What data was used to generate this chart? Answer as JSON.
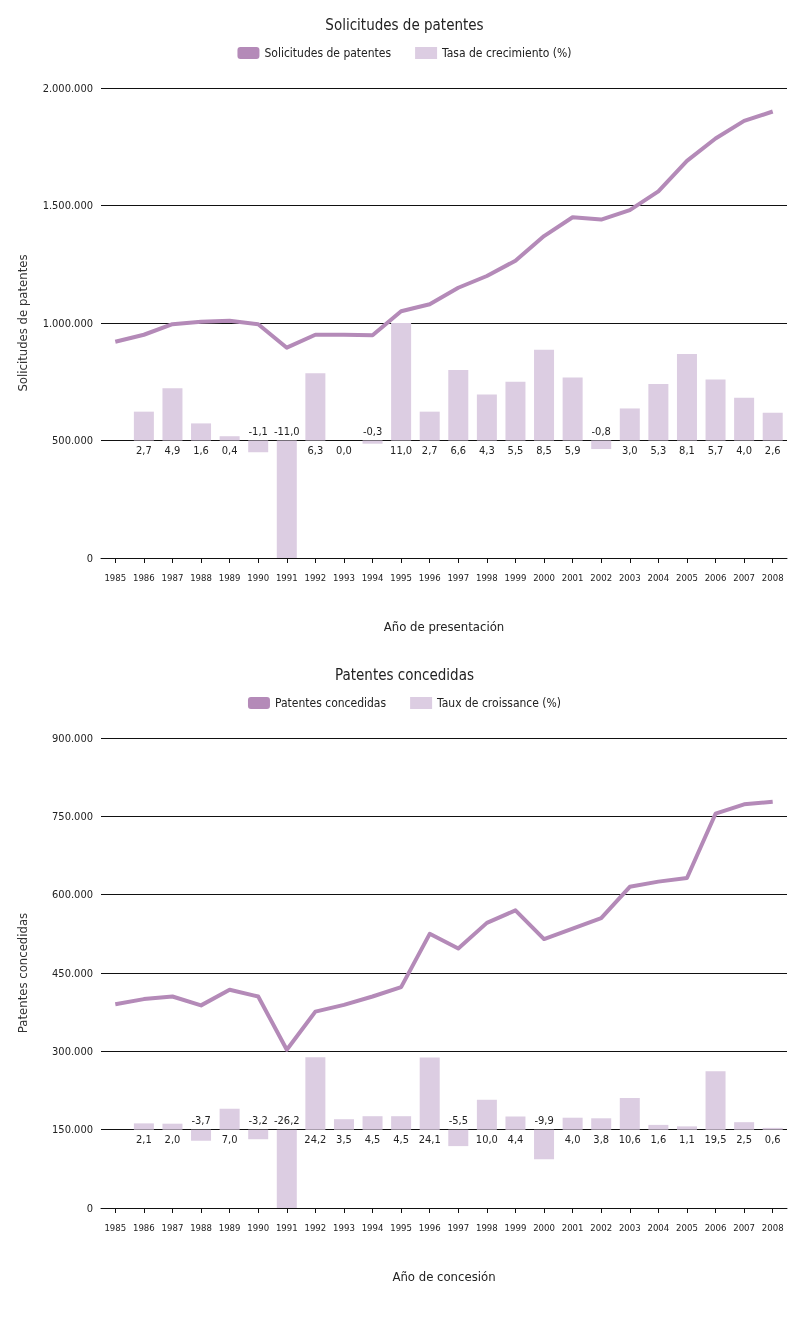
{
  "chart_data": [
    {
      "type": "bar",
      "title": "Solicitudes de patentes",
      "xlabel": "Año de presentación",
      "ylabel": "Solicitudes de patentes",
      "legend": "top",
      "grid": "y",
      "marker": "none",
      "categories": [
        "1985",
        "1986",
        "1987",
        "1988",
        "1989",
        "1990",
        "1991",
        "1992",
        "1993",
        "1994",
        "1995",
        "1996",
        "1997",
        "1998",
        "1999",
        "2000",
        "2001",
        "2002",
        "2003",
        "2004",
        "2005",
        "2006",
        "2007",
        "2008"
      ],
      "ylim": [
        0,
        2000000
      ],
      "yticks": [
        {
          "value": 0,
          "label": "0"
        },
        {
          "value": 500000,
          "label": "500.000"
        },
        {
          "value": 1000000,
          "label": "1.000.000"
        },
        {
          "value": 1500000,
          "label": "1.500.000"
        },
        {
          "value": 2000000,
          "label": "2.000.000"
        }
      ],
      "y2lim": [
        -11,
        33
      ],
      "series": [
        {
          "name": "Solicitudes de patentes",
          "type": "line",
          "color": "#b48ab8",
          "values": [
            920000,
            950000,
            995000,
            1005000,
            1010000,
            995000,
            895000,
            950000,
            950000,
            948000,
            1050000,
            1080000,
            1150000,
            1200000,
            1265000,
            1370000,
            1450000,
            1440000,
            1480000,
            1560000,
            1690000,
            1785000,
            1860000,
            1900000
          ]
        },
        {
          "name": "Tasa de crecimiento (%)",
          "axis": "y2",
          "color": "#dccde2",
          "values": [
            null,
            2.7,
            4.9,
            1.6,
            0.4,
            -1.1,
            -11.0,
            6.3,
            0.0,
            -0.3,
            11.0,
            2.7,
            6.6,
            4.3,
            5.5,
            8.5,
            5.9,
            -0.8,
            3.0,
            5.3,
            8.1,
            5.7,
            4.0,
            2.6
          ],
          "value_labels": [
            null,
            "2,7",
            "4,9",
            "1,6",
            "0,4",
            "-1,1",
            "-11,0",
            "6,3",
            "0,0",
            "-0,3",
            "11,0",
            "2,7",
            "6,6",
            "4,3",
            "5,5",
            "8,5",
            "5,9",
            "-0,8",
            "3,0",
            "5,3",
            "8,1",
            "5,7",
            "4,0",
            "2,6"
          ]
        }
      ]
    },
    {
      "type": "bar",
      "title": "Patentes concedidas",
      "xlabel": "Año de concesión",
      "ylabel": "Patentes concedidas",
      "legend": "top",
      "grid": "y",
      "marker": "none",
      "categories": [
        "1985",
        "1986",
        "1987",
        "1988",
        "1989",
        "1990",
        "1991",
        "1992",
        "1993",
        "1994",
        "1995",
        "1996",
        "1997",
        "1998",
        "1999",
        "2000",
        "2001",
        "2002",
        "2003",
        "2004",
        "2005",
        "2006",
        "2007",
        "2008"
      ],
      "ylim": [
        0,
        900000
      ],
      "yticks": [
        {
          "value": 0,
          "label": "0"
        },
        {
          "value": 150000,
          "label": "150.000"
        },
        {
          "value": 300000,
          "label": "300.000"
        },
        {
          "value": 450000,
          "label": "450.000"
        },
        {
          "value": 600000,
          "label": "600.000"
        },
        {
          "value": 750000,
          "label": "750.000"
        },
        {
          "value": 900000,
          "label": "900.000"
        }
      ],
      "y2lim": [
        -26.2,
        131
      ],
      "series": [
        {
          "name": "Patentes concedidas",
          "type": "line",
          "color": "#b48ab8",
          "values": [
            390000,
            400000,
            405000,
            388000,
            418000,
            405000,
            303000,
            376000,
            389000,
            405000,
            423000,
            525000,
            497000,
            546000,
            570000,
            515000,
            535000,
            555000,
            615000,
            625000,
            632000,
            755000,
            773000,
            778000
          ]
        },
        {
          "name": "Taux de croissance (%)",
          "axis": "y2",
          "color": "#dccde2",
          "values": [
            null,
            2.1,
            2.0,
            -3.7,
            7.0,
            -3.2,
            -26.2,
            24.2,
            3.5,
            4.5,
            4.5,
            24.1,
            -5.5,
            10.0,
            4.4,
            -9.9,
            4.0,
            3.8,
            10.6,
            1.6,
            1.1,
            19.5,
            2.5,
            0.6
          ],
          "value_labels": [
            null,
            "2,1",
            "2,0",
            "-3,7",
            "7,0",
            "-3,2",
            "-26,2",
            "24,2",
            "3,5",
            "4,5",
            "4,5",
            "24,1",
            "-5,5",
            "10,0",
            "4,4",
            "-9,9",
            "4,0",
            "3,8",
            "10,6",
            "1,6",
            "1,1",
            "19,5",
            "2,5",
            "0,6"
          ]
        }
      ]
    }
  ]
}
